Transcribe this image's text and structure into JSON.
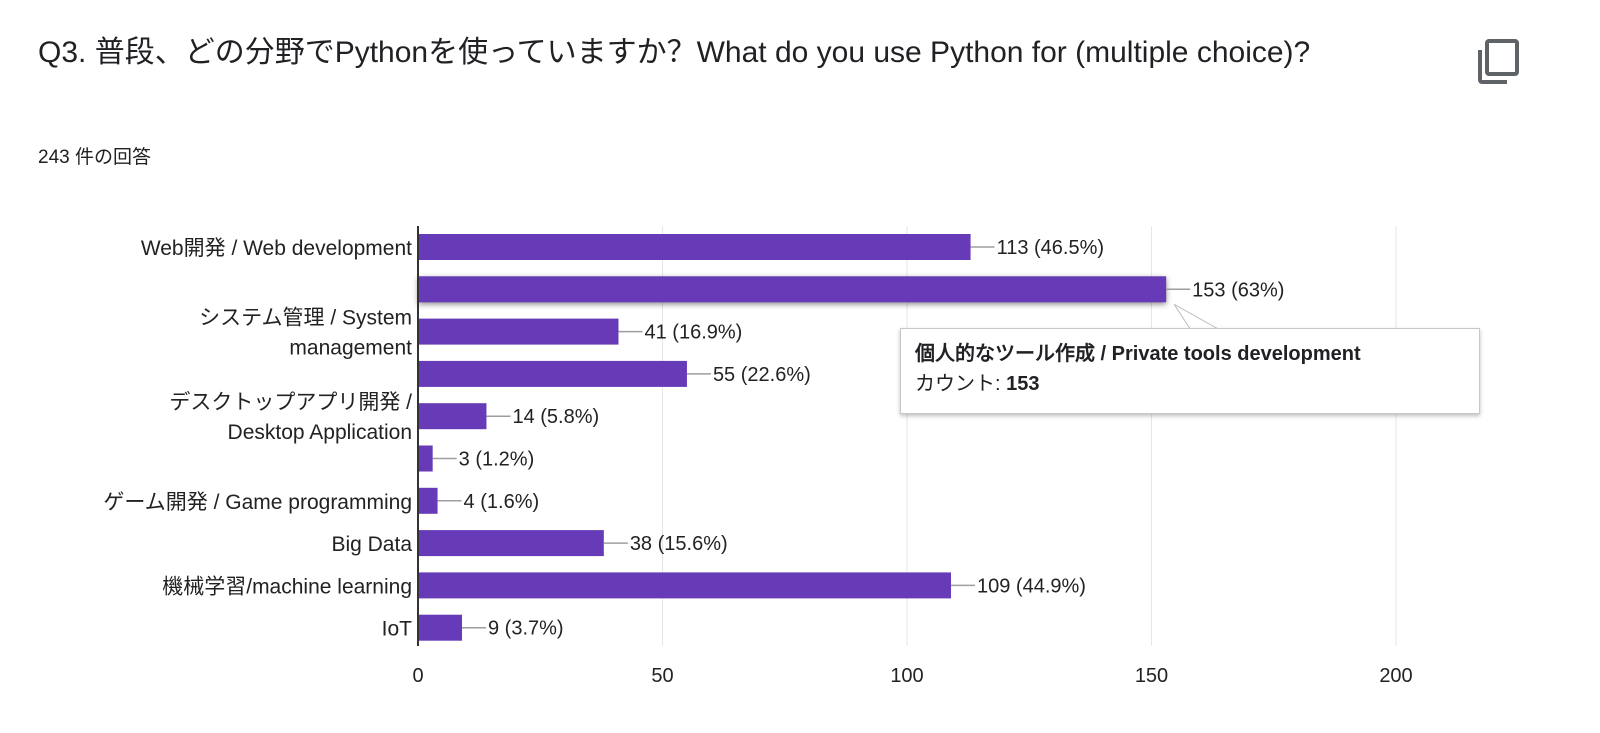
{
  "header": {
    "title": "Q3. 普段、どの分野でPythonを使っていますか？What do you use Python for (multiple choice)?",
    "response_count": "243 件の回答"
  },
  "icons": {
    "copy": "copy-icon"
  },
  "colors": {
    "bar": "#673ab7",
    "grid": "#e6e6e6",
    "axis": "#333333"
  },
  "tooltip": {
    "category": "個人的なツール作成 / Private tools development",
    "count_label": "カウント: ",
    "count_value": "153"
  },
  "chart_data": {
    "type": "bar",
    "orientation": "horizontal",
    "categories": [
      [
        "Web開発 / Web development"
      ],
      [],
      [
        "システム管理 / System",
        "management"
      ],
      [],
      [
        "デスクトップアプリ開発 /",
        "Desktop Application"
      ],
      [],
      [
        "ゲーム開発 / Game programming"
      ],
      [
        "Big Data"
      ],
      [
        "機械学習/machine learning"
      ],
      [
        "IoT"
      ]
    ],
    "values": [
      113,
      153,
      41,
      55,
      14,
      3,
      4,
      38,
      109,
      9
    ],
    "value_labels": [
      "113 (46.5%)",
      "153 (63%)",
      "41 (16.9%)",
      "55 (22.6%)",
      "14 (5.8%)",
      "3 (1.2%)",
      "4 (1.6%)",
      "38 (15.6%)",
      "109 (44.9%)",
      "9 (3.7%)"
    ],
    "xlim": [
      0,
      200
    ],
    "xticks": [
      0,
      50,
      100,
      150,
      200
    ],
    "grid": true,
    "highlighted_index": 1
  }
}
